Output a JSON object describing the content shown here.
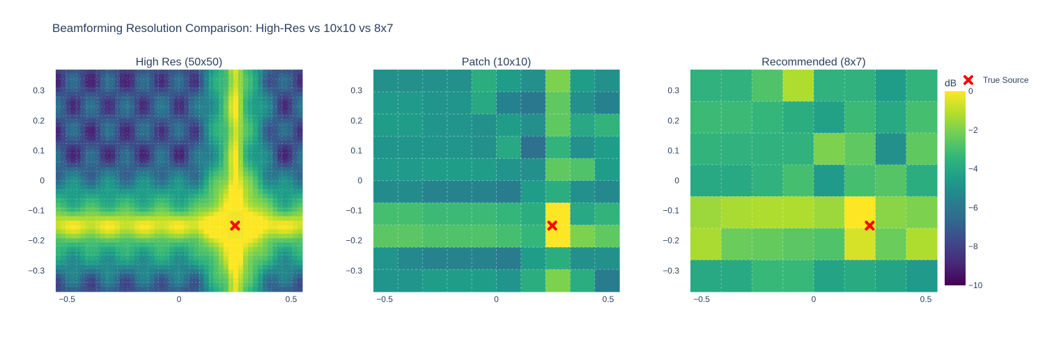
{
  "title": "Beamforming Resolution Comparison: High-Res vs 10x10 vs 8x7",
  "colors": {
    "viridis": [
      "#440154",
      "#482878",
      "#3e4989",
      "#31688e",
      "#26828e",
      "#1f9e89",
      "#35b779",
      "#6ece58",
      "#b5de2b",
      "#fde725"
    ],
    "marker": "#ff0000",
    "grid": "#ffffff"
  },
  "colorbar": {
    "title": "dB",
    "ticks": [
      0,
      -2,
      -4,
      -6,
      -8,
      -10
    ],
    "range": [
      -10,
      0
    ]
  },
  "legend": {
    "label": "True Source",
    "marker_icon": "x-marker-icon"
  },
  "chart_data": [
    {
      "type": "heatmap",
      "title": "High Res (50x50)",
      "xlim": [
        -0.55,
        0.55
      ],
      "ylim": [
        -0.37,
        0.37
      ],
      "xticks": [
        -0.5,
        0,
        0.5
      ],
      "xtick_labels": [
        "−0.5",
        "0",
        "0.5"
      ],
      "yticks": [
        0.3,
        0.2,
        0.1,
        0,
        -0.1,
        -0.2,
        -0.3
      ],
      "ytick_labels": [
        "0.3",
        "0.2",
        "0.1",
        "0",
        "−0.1",
        "−0.2",
        "−0.3"
      ],
      "grid_size": [
        50,
        50
      ],
      "source_x": 0.25,
      "source_y": -0.15
    },
    {
      "type": "heatmap",
      "title": "Patch (10x10)",
      "xlim": [
        -0.55,
        0.55
      ],
      "ylim": [
        -0.37,
        0.37
      ],
      "xticks": [
        -0.5,
        0,
        0.5
      ],
      "xtick_labels": [
        "−0.5",
        "0",
        "0.5"
      ],
      "yticks": [
        0.3,
        0.2,
        0.1,
        0,
        -0.1,
        -0.2,
        -0.3
      ],
      "ytick_labels": [
        "0.3",
        "0.2",
        "0.1",
        "0",
        "−0.1",
        "−0.2",
        "−0.3"
      ],
      "z_rows_top_to_bottom": [
        [
          -5.0,
          -5.0,
          -5.0,
          -5.0,
          -3.8,
          -4.5,
          -5.0,
          -2.0,
          -4.5,
          -5.0
        ],
        [
          -4.6,
          -4.6,
          -4.8,
          -4.8,
          -4.0,
          -5.6,
          -6.0,
          -2.5,
          -5.0,
          -5.6
        ],
        [
          -4.5,
          -4.5,
          -4.8,
          -4.8,
          -5.0,
          -4.5,
          -5.0,
          -2.5,
          -4.0,
          -3.5
        ],
        [
          -4.8,
          -4.8,
          -4.8,
          -4.8,
          -5.0,
          -4.0,
          -6.3,
          -3.5,
          -5.0,
          -4.5
        ],
        [
          -4.6,
          -4.6,
          -4.5,
          -4.5,
          -4.5,
          -4.8,
          -5.0,
          -2.5,
          -2.8,
          -4.5
        ],
        [
          -5.2,
          -5.2,
          -5.5,
          -5.5,
          -5.5,
          -5.8,
          -4.5,
          -3.8,
          -5.0,
          -5.3
        ],
        [
          -3.0,
          -3.0,
          -3.2,
          -3.2,
          -3.2,
          -3.4,
          -3.8,
          0.0,
          -4.0,
          -3.5
        ],
        [
          -2.6,
          -2.6,
          -2.8,
          -2.8,
          -2.8,
          -3.0,
          -3.4,
          0.0,
          -2.0,
          -2.5
        ],
        [
          -4.8,
          -5.3,
          -5.5,
          -5.5,
          -5.5,
          -5.8,
          -4.5,
          -3.8,
          -5.0,
          -5.0
        ],
        [
          -4.8,
          -4.8,
          -4.5,
          -4.5,
          -4.5,
          -4.8,
          -3.8,
          -2.0,
          -3.8,
          -5.8
        ]
      ],
      "source_x": 0.25,
      "source_y": -0.15
    },
    {
      "type": "heatmap",
      "title": "Recommended (8x7)",
      "xlim": [
        -0.55,
        0.55
      ],
      "ylim": [
        -0.37,
        0.37
      ],
      "xticks": [
        -0.5,
        0,
        0.5
      ],
      "xtick_labels": [
        "−0.5",
        "0",
        "0.5"
      ],
      "yticks": [
        0.3,
        0.2,
        0.1,
        0,
        -0.1,
        -0.2,
        -0.3
      ],
      "ytick_labels": [
        "0.3",
        "0.2",
        "0.1",
        "0",
        "−0.1",
        "−0.2",
        "−0.3"
      ],
      "z_rows_top_to_bottom": [
        [
          -3.6,
          -3.6,
          -2.8,
          -1.2,
          -3.6,
          -3.6,
          -4.5,
          -3.5
        ],
        [
          -3.2,
          -3.2,
          -3.4,
          -3.8,
          -4.3,
          -3.2,
          -4.0,
          -3.0
        ],
        [
          -3.5,
          -3.6,
          -3.6,
          -3.6,
          -2.0,
          -2.5,
          -5.0,
          -2.5
        ],
        [
          -4.0,
          -4.0,
          -3.6,
          -3.0,
          -4.6,
          -3.0,
          -2.7,
          -3.8
        ],
        [
          -1.5,
          -1.3,
          -1.2,
          -1.2,
          -1.5,
          0.0,
          -1.8,
          -2.0
        ],
        [
          -1.3,
          -2.3,
          -2.4,
          -2.6,
          -2.8,
          -0.6,
          -2.3,
          -1.2
        ],
        [
          -4.0,
          -4.0,
          -3.3,
          -3.3,
          -4.2,
          -3.9,
          -4.2,
          -4.6
        ]
      ],
      "source_x": 0.25,
      "source_y": -0.15
    }
  ]
}
